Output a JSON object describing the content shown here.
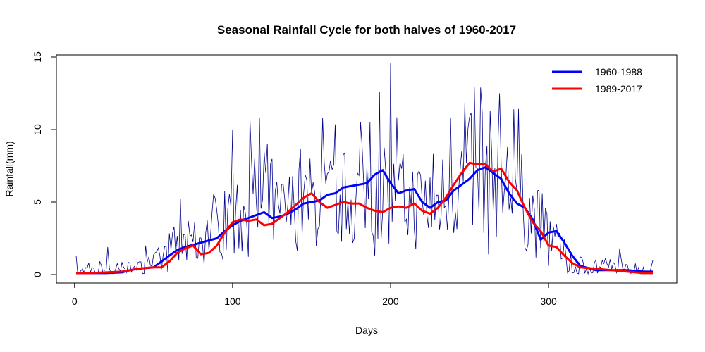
{
  "chart_data": {
    "type": "line",
    "title": "Seasonal Rainfall Cycle for both halves of 1960-2017",
    "xlabel": "Days",
    "ylabel": "Rainfall(mm)",
    "xlim": [
      1,
      366
    ],
    "ylim": [
      0,
      15
    ],
    "x_ticks": [
      0,
      100,
      200,
      300
    ],
    "y_ticks": [
      0,
      5,
      10,
      15
    ],
    "grid": false,
    "legend_position": "top-right",
    "colors": {
      "daily": "#00008B",
      "first_half": "#0000FF",
      "second_half": "#FF0000"
    },
    "daily_series": {
      "anchors_x": [
        1,
        10,
        20,
        30,
        40,
        50,
        55,
        60,
        70,
        80,
        90,
        100,
        110,
        120,
        130,
        140,
        150,
        160,
        170,
        180,
        190,
        200,
        210,
        220,
        230,
        240,
        250,
        255,
        260,
        270,
        280,
        290,
        300,
        305,
        310,
        315,
        320,
        330,
        340,
        350,
        360,
        366
      ],
      "anchors_y": [
        0.2,
        0.2,
        0.3,
        0.2,
        0.4,
        0.6,
        1.0,
        1.6,
        2.0,
        2.5,
        3.2,
        3.8,
        4.0,
        4.2,
        4.0,
        4.6,
        5.0,
        5.0,
        5.2,
        5.4,
        6.0,
        5.5,
        5.0,
        4.8,
        5.0,
        6.0,
        6.8,
        7.0,
        7.2,
        6.5,
        5.5,
        4.0,
        2.8,
        2.0,
        1.2,
        0.8,
        0.5,
        0.4,
        0.4,
        0.3,
        0.3,
        0.3
      ],
      "noise_amplitude": 0.6,
      "peaks": [
        [
          1,
          1.3
        ],
        [
          21,
          1.9
        ],
        [
          45,
          2.0
        ],
        [
          67,
          5.2
        ],
        [
          100,
          10.0
        ],
        [
          111,
          10.8
        ],
        [
          117,
          10.8
        ],
        [
          157,
          10.8
        ],
        [
          187,
          10.5
        ],
        [
          193,
          12.6
        ],
        [
          200,
          14.6
        ],
        [
          238,
          10.8
        ],
        [
          247,
          11.8
        ],
        [
          257,
          12.9
        ],
        [
          262,
          12.4
        ],
        [
          269,
          12.5
        ],
        [
          278,
          11.4
        ],
        [
          300,
          8.0
        ],
        [
          345,
          1.8
        ]
      ],
      "troughs": [
        [
          190,
          1.3
        ],
        [
          262,
          1.4
        ],
        [
          300,
          0.6
        ]
      ]
    },
    "series": [
      {
        "name": "1960-1988",
        "x": [
          1,
          10,
          20,
          30,
          35,
          40,
          50,
          55,
          60,
          65,
          70,
          80,
          90,
          95,
          100,
          105,
          110,
          115,
          120,
          125,
          130,
          135,
          140,
          145,
          150,
          155,
          160,
          165,
          170,
          175,
          180,
          185,
          190,
          195,
          200,
          205,
          210,
          215,
          220,
          225,
          230,
          235,
          240,
          245,
          250,
          255,
          260,
          265,
          270,
          275,
          280,
          285,
          290,
          295,
          300,
          305,
          310,
          315,
          320,
          330,
          340,
          350,
          360,
          366
        ],
        "y": [
          0.1,
          0.1,
          0.1,
          0.15,
          0.3,
          0.4,
          0.5,
          0.9,
          1.3,
          1.7,
          1.9,
          2.2,
          2.5,
          3.0,
          3.4,
          3.7,
          3.9,
          4.1,
          4.3,
          3.9,
          4.0,
          4.2,
          4.5,
          4.9,
          5.0,
          5.1,
          5.5,
          5.6,
          6.0,
          6.1,
          6.2,
          6.3,
          6.9,
          7.2,
          6.3,
          5.6,
          5.8,
          5.9,
          5.0,
          4.6,
          5.0,
          5.1,
          5.8,
          6.2,
          6.6,
          7.2,
          7.4,
          7.0,
          6.6,
          5.6,
          4.9,
          4.6,
          3.8,
          2.4,
          2.9,
          3.0,
          2.2,
          1.3,
          0.6,
          0.3,
          0.3,
          0.3,
          0.2,
          0.2
        ]
      },
      {
        "name": "1989-2017",
        "x": [
          1,
          10,
          20,
          30,
          35,
          40,
          50,
          55,
          60,
          65,
          70,
          75,
          80,
          85,
          90,
          95,
          100,
          105,
          110,
          115,
          120,
          125,
          130,
          135,
          140,
          145,
          150,
          155,
          160,
          165,
          170,
          175,
          180,
          185,
          190,
          195,
          200,
          205,
          210,
          215,
          220,
          225,
          230,
          235,
          240,
          245,
          250,
          255,
          260,
          265,
          270,
          275,
          280,
          285,
          290,
          295,
          300,
          305,
          310,
          315,
          320,
          330,
          340,
          350,
          360,
          366
        ],
        "y": [
          0.1,
          0.1,
          0.15,
          0.2,
          0.3,
          0.4,
          0.5,
          0.5,
          0.9,
          1.5,
          1.8,
          2.0,
          1.4,
          1.5,
          2.0,
          2.9,
          3.6,
          3.8,
          3.7,
          3.8,
          3.4,
          3.5,
          3.9,
          4.3,
          4.8,
          5.3,
          5.6,
          5.0,
          4.6,
          4.8,
          5.0,
          4.9,
          4.9,
          4.6,
          4.4,
          4.3,
          4.6,
          4.7,
          4.6,
          4.9,
          4.4,
          4.2,
          4.6,
          5.3,
          6.2,
          7.0,
          7.7,
          7.6,
          7.6,
          7.1,
          7.3,
          6.4,
          5.8,
          4.6,
          3.6,
          3.0,
          2.0,
          1.9,
          1.3,
          0.8,
          0.5,
          0.4,
          0.3,
          0.2,
          0.1,
          0.1
        ]
      }
    ]
  }
}
